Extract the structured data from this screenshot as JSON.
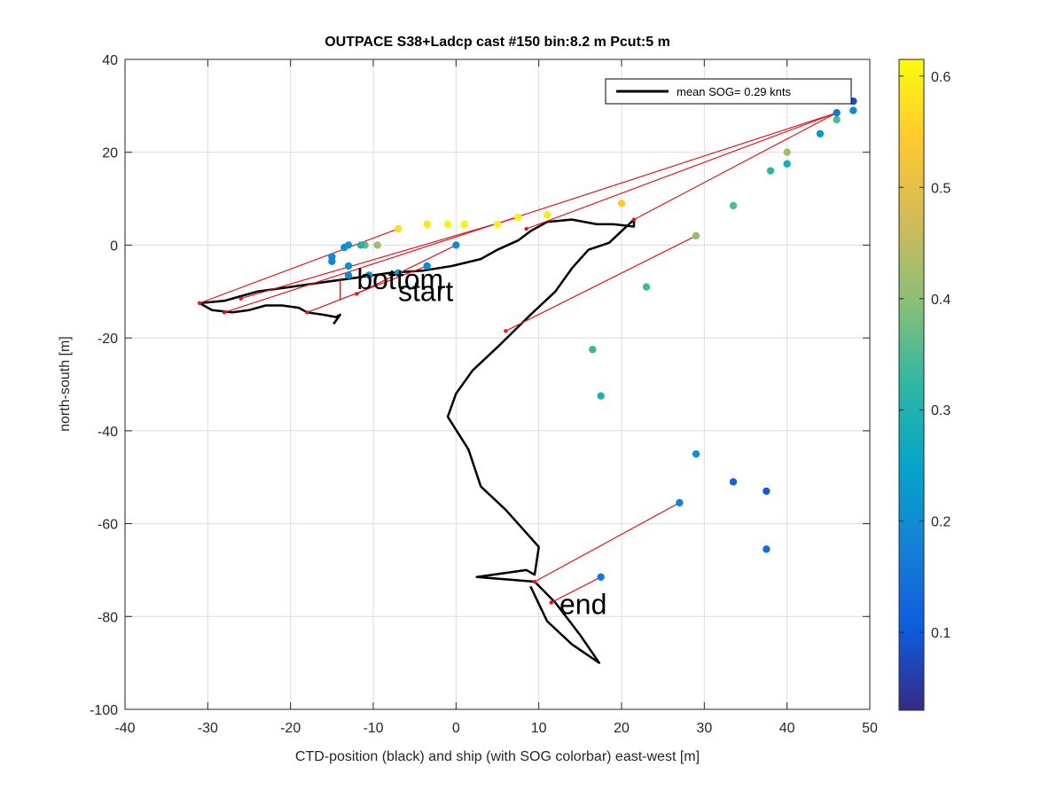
{
  "chart_data": {
    "type": "scatter",
    "title": "OUTPACE S38+Ladcp cast #150 bin:8.2 m  Pcut:5 m",
    "xlabel": "CTD-position (black) and ship (with SOG colorbar) east-west [m]",
    "ylabel": "north-south [m]",
    "xlim": [
      -40,
      50
    ],
    "ylim": [
      -100,
      40
    ],
    "xticks": [
      -40,
      -30,
      -20,
      -10,
      0,
      10,
      20,
      30,
      40,
      50
    ],
    "yticks": [
      -100,
      -80,
      -60,
      -40,
      -20,
      0,
      20,
      40
    ],
    "grid": true,
    "legend": {
      "position": "top-right",
      "entries": [
        "mean SOG=  0.29 knts"
      ]
    },
    "annotations": [
      {
        "text": "bottom",
        "x": -12,
        "y": -9.5
      },
      {
        "text": "start",
        "x": -7,
        "y": -12
      },
      {
        "text": "end",
        "x": 12.5,
        "y": -79.5
      }
    ],
    "colorbar": {
      "range": [
        0.03,
        0.615
      ],
      "ticks": [
        0.1,
        0.2,
        0.3,
        0.4,
        0.5,
        0.6
      ],
      "colormap": "parula"
    },
    "series": [
      {
        "name": "mean SOG=  0.29 knts",
        "kind": "ctd-track",
        "color": "#000000",
        "points": [
          [
            -0.5,
            -4.5
          ],
          [
            3,
            -3
          ],
          [
            5,
            -1
          ],
          [
            7.5,
            1
          ],
          [
            9,
            3
          ],
          [
            11,
            5
          ],
          [
            14,
            5.5
          ],
          [
            17,
            4.5
          ],
          [
            19,
            4.5
          ],
          [
            21.5,
            4
          ],
          [
            21.5,
            5.5
          ],
          [
            20,
            3
          ],
          [
            18.5,
            0.5
          ],
          [
            16,
            -1
          ],
          [
            14,
            -5
          ],
          [
            12,
            -10
          ],
          [
            9,
            -15
          ],
          [
            5,
            -22
          ],
          [
            2,
            -27
          ],
          [
            0,
            -32
          ],
          [
            -1,
            -37
          ],
          [
            1.5,
            -44
          ],
          [
            3,
            -52
          ],
          [
            6,
            -57
          ],
          [
            8,
            -61
          ],
          [
            10,
            -65
          ],
          [
            9.5,
            -71
          ],
          [
            8.5,
            -70
          ],
          [
            2.5,
            -71.5
          ],
          [
            9.5,
            -72.5
          ],
          [
            12,
            -77
          ],
          [
            15,
            -84
          ],
          [
            17.3,
            -90
          ],
          [
            14,
            -86
          ],
          [
            11,
            -81
          ],
          [
            9,
            -73.5
          ]
        ]
      },
      {
        "kind": "ctd-track",
        "color": "#000000",
        "points": [
          [
            -0.5,
            -4.5
          ],
          [
            -4,
            -5.5
          ],
          [
            -8,
            -6
          ],
          [
            -12,
            -7
          ],
          [
            -16,
            -8
          ],
          [
            -20,
            -9
          ],
          [
            -24,
            -10
          ],
          [
            -26,
            -11
          ],
          [
            -28,
            -12
          ],
          [
            -31,
            -12.5
          ],
          [
            -29.5,
            -14
          ],
          [
            -27,
            -14.5
          ],
          [
            -25,
            -14
          ],
          [
            -23,
            -13
          ],
          [
            -21,
            -13
          ],
          [
            -19,
            -13.5
          ],
          [
            -18,
            -14.5
          ],
          [
            -16,
            -15
          ],
          [
            -14.5,
            -15.5
          ],
          [
            -14,
            -15
          ],
          [
            -14.8,
            -17
          ]
        ]
      },
      {
        "kind": "ship-segments",
        "color": "#e8141c",
        "segments": [
          [
            [
              -7,
              3.5
            ],
            [
              -31,
              -12.5
            ]
          ],
          [
            [
              7.5,
              6
            ],
            [
              -26,
              -11.5
            ]
          ],
          [
            [
              46,
              28.5
            ],
            [
              8.5,
              3.5
            ]
          ],
          [
            [
              46,
              28.5
            ],
            [
              -28,
              -14.5
            ]
          ],
          [
            [
              -3.5,
              -4.5
            ],
            [
              -18,
              -14.5
            ]
          ],
          [
            [
              0,
              0
            ],
            [
              -12,
              -10.5
            ]
          ],
          [
            [
              29,
              2
            ],
            [
              6,
              -18.5
            ]
          ],
          [
            [
              27,
              -55.5
            ],
            [
              9.5,
              -72.5
            ]
          ],
          [
            [
              17.5,
              -71.5
            ],
            [
              11.5,
              -77
            ]
          ],
          [
            [
              46,
              28.5
            ],
            [
              21.5,
              5.5
            ]
          ]
        ]
      },
      {
        "kind": "ship-sog",
        "colorvar": "SOG [knts]",
        "points": [
          {
            "x": -7,
            "y": 3.5,
            "sog": 0.57
          },
          {
            "x": -3.5,
            "y": 4.5,
            "sog": 0.59
          },
          {
            "x": -1,
            "y": 4.5,
            "sog": 0.6
          },
          {
            "x": 1,
            "y": 4.5,
            "sog": 0.6
          },
          {
            "x": 5,
            "y": 4.5,
            "sog": 0.6
          },
          {
            "x": 7.5,
            "y": 6,
            "sog": 0.6
          },
          {
            "x": 11,
            "y": 6.5,
            "sog": 0.59
          },
          {
            "x": 20,
            "y": 9,
            "sog": 0.54
          },
          {
            "x": 33.5,
            "y": 8.5,
            "sog": 0.35
          },
          {
            "x": 29,
            "y": 2,
            "sog": 0.4
          },
          {
            "x": 23,
            "y": -9,
            "sog": 0.34
          },
          {
            "x": 38,
            "y": 16,
            "sog": 0.32
          },
          {
            "x": 40,
            "y": 17.5,
            "sog": 0.28
          },
          {
            "x": 40,
            "y": 20,
            "sog": 0.42
          },
          {
            "x": 44,
            "y": 24,
            "sog": 0.22
          },
          {
            "x": 46,
            "y": 27,
            "sog": 0.35
          },
          {
            "x": 46,
            "y": 28.5,
            "sog": 0.16
          },
          {
            "x": 48,
            "y": 29,
            "sog": 0.2
          },
          {
            "x": 48,
            "y": 31,
            "sog": 0.08
          },
          {
            "x": -9.5,
            "y": 0,
            "sog": 0.42
          },
          {
            "x": -11,
            "y": 0,
            "sog": 0.36
          },
          {
            "x": -11.5,
            "y": 0,
            "sog": 0.3
          },
          {
            "x": -13,
            "y": 0,
            "sog": 0.22
          },
          {
            "x": -13.5,
            "y": -0.5,
            "sog": 0.2
          },
          {
            "x": 0,
            "y": 0,
            "sog": 0.2
          },
          {
            "x": -15,
            "y": -2.5,
            "sog": 0.2
          },
          {
            "x": -15,
            "y": -3.5,
            "sog": 0.18
          },
          {
            "x": -13,
            "y": -4.5,
            "sog": 0.21
          },
          {
            "x": -13,
            "y": -6.5,
            "sog": 0.2
          },
          {
            "x": -10.5,
            "y": -6.5,
            "sog": 0.22
          },
          {
            "x": -7,
            "y": -6,
            "sog": 0.24
          },
          {
            "x": -3.5,
            "y": -4.5,
            "sog": 0.19
          },
          {
            "x": 16.5,
            "y": -22.5,
            "sog": 0.33
          },
          {
            "x": 17.5,
            "y": -32.5,
            "sog": 0.3
          },
          {
            "x": 29,
            "y": -45,
            "sog": 0.21
          },
          {
            "x": 33.5,
            "y": -51,
            "sog": 0.12
          },
          {
            "x": 37.5,
            "y": -53,
            "sog": 0.1
          },
          {
            "x": 37.5,
            "y": -65.5,
            "sog": 0.14
          },
          {
            "x": 27,
            "y": -55.5,
            "sog": 0.18
          },
          {
            "x": 17.5,
            "y": -71.5,
            "sog": 0.16
          }
        ]
      }
    ]
  }
}
